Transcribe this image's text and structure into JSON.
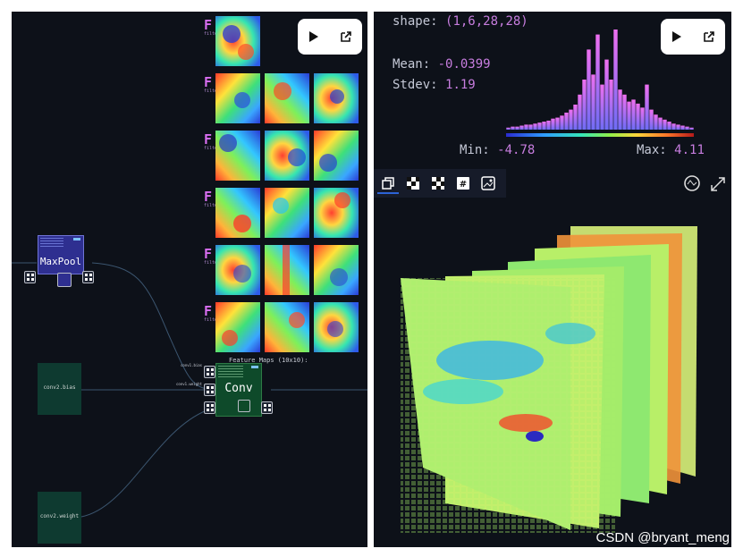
{
  "left_panel": {
    "maxpool_node": {
      "title": "MaxPool"
    },
    "bias_node": {
      "label": "conv2.bias"
    },
    "weight_node": {
      "label": "conv2.weight"
    },
    "conv_node": {
      "title": "Conv"
    },
    "feature_maps": {
      "marker": "F",
      "sub": "filters",
      "caption": "Feature Maps (10x10):"
    },
    "port_labels": {
      "conv_bias": "conv1.bias",
      "conv_weight": "conv1.weight"
    }
  },
  "right_panel": {
    "shape_label": "shape:",
    "shape_value": "(1,6,28,28)",
    "mean_label": "Mean:",
    "mean_value": "-0.0399",
    "stdev_label": "Stdev:",
    "stdev_value": "1.19",
    "min_label": "Min:",
    "min_value": "-4.78",
    "max_label": "Max:",
    "max_value": "4.11",
    "histogram_bin_fractions": [
      0.02,
      0.03,
      0.03,
      0.04,
      0.05,
      0.05,
      0.06,
      0.07,
      0.08,
      0.09,
      0.11,
      0.12,
      0.14,
      0.17,
      0.2,
      0.25,
      0.35,
      0.5,
      0.8,
      0.55,
      0.95,
      0.45,
      0.7,
      0.5,
      1.0,
      0.4,
      0.35,
      0.28,
      0.3,
      0.26,
      0.22,
      0.45,
      0.2,
      0.15,
      0.12,
      0.1,
      0.08,
      0.06,
      0.05,
      0.04,
      0.03,
      0.02
    ],
    "view_tabs": [
      "cube-view-icon",
      "checker-view-icon",
      "checker-alt-view-icon",
      "hash-view-icon",
      "image-view-icon"
    ]
  },
  "toolbar": {
    "play_icon": "play-icon",
    "external_icon": "external-link-icon"
  },
  "watermark": "CSDN @bryant_meng",
  "colors": {
    "panel_bg": "#0d1119",
    "node_blue": "#2e2f90",
    "node_green": "#0e4a2a",
    "bias_node": "#0e3a30",
    "accent_purple": "#c77ddf"
  }
}
